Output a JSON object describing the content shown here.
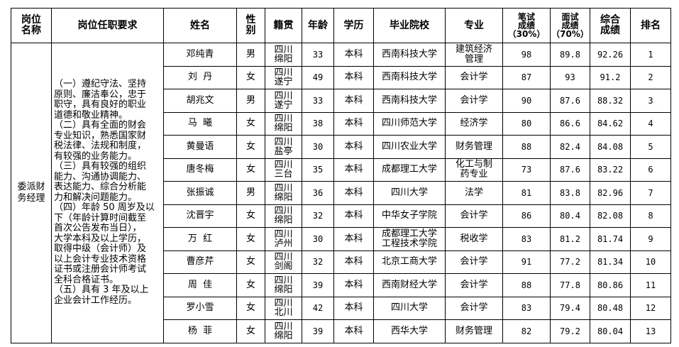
{
  "headers": {
    "position": "岗位\n名称",
    "requirements": "岗位任职要求",
    "name": "姓名",
    "gender": "性\n别",
    "native_place": "籍贯",
    "age": "年龄",
    "education": "学历",
    "school": "毕业院校",
    "major": "专业",
    "written": "笔试\n成绩\n（30%）",
    "interview": "面试\n成绩\n（70%）",
    "total": "综合\n成绩",
    "rank": "排名"
  },
  "position": "委派财\n务经理",
  "requirements": "（一）遵纪守法、坚持\n原则、廉洁奉公，忠于\n职守，具有良好的职业\n道德和敬业精神。\n（二）具有全面的财会\n专业知识，熟悉国家财\n税法律、法规和制度，\n有较强的业务能力。\n（三）具有较强的组织\n能力、沟通协调能力、\n表达能力、综合分析能\n力和解决问题能力。\n（四）年龄 50 周岁及以\n下（年龄计算时间截至\n首次公告发布当日），\n大学本科及以上学历，\n取得中级（会计师）及\n以上会计专业技术资格\n证书或注册会计师考试\n全科合格证书。\n（五）具有 3 年及以上\n企业会计工作经历。",
  "rows": [
    {
      "name": "邓纯青",
      "gender": "男",
      "native": "四川\n绵阳",
      "age": "33",
      "edu": "本科",
      "school": "西南科技大学",
      "major": "建筑经济\n管理",
      "written": "98",
      "interview": "89.8",
      "total": "92.26",
      "rank": "1"
    },
    {
      "name": "刘  丹",
      "gender": "女",
      "native": "四川\n遂宁",
      "age": "49",
      "edu": "本科",
      "school": "西南科技大学",
      "major": "会计学",
      "written": "87",
      "interview": "93",
      "total": "91.2",
      "rank": "2"
    },
    {
      "name": "胡兆文",
      "gender": "男",
      "native": "四川\n遂宁",
      "age": "33",
      "edu": "本科",
      "school": "西南科技大学",
      "major": "会计学",
      "written": "90",
      "interview": "87.6",
      "total": "88.32",
      "rank": "3"
    },
    {
      "name": "马  曦",
      "gender": "女",
      "native": "四川\n绵阳",
      "age": "38",
      "edu": "本科",
      "school": "四川师范大学",
      "major": "经济学",
      "written": "80",
      "interview": "86.6",
      "total": "84.62",
      "rank": "4"
    },
    {
      "name": "黄曼语",
      "gender": "女",
      "native": "四川\n盐亭",
      "age": "30",
      "edu": "本科",
      "school": "四川农业大学",
      "major": "财务管理",
      "written": "88",
      "interview": "82.4",
      "total": "84.08",
      "rank": "5"
    },
    {
      "name": "唐冬梅",
      "gender": "女",
      "native": "四川\n三台",
      "age": "35",
      "edu": "本科",
      "school": "成都理工大学",
      "major": "化工与制\n药专业",
      "written": "73",
      "interview": "87.6",
      "total": "83.22",
      "rank": "6"
    },
    {
      "name": "张振诚",
      "gender": "男",
      "native": "四川\n绵阳",
      "age": "36",
      "edu": "本科",
      "school": "四川大学",
      "major": "法学",
      "written": "81",
      "interview": "83.8",
      "total": "82.96",
      "rank": "7"
    },
    {
      "name": "沈晋宇",
      "gender": "女",
      "native": "四川\n绵阳",
      "age": "32",
      "edu": "本科",
      "school": "中华女子学院",
      "major": "会计学",
      "written": "86",
      "interview": "80.4",
      "total": "82.08",
      "rank": "8"
    },
    {
      "name": "万  红",
      "gender": "女",
      "native": "四川\n泸州",
      "age": "30",
      "edu": "本科",
      "school": "成都理工大学\n工程技术学院",
      "major": "税收学",
      "written": "83",
      "interview": "81.2",
      "total": "81.74",
      "rank": "9"
    },
    {
      "name": "曹彦芹",
      "gender": "女",
      "native": "四川\n剑阁",
      "age": "32",
      "edu": "本科",
      "school": "北京工商大学",
      "major": "会计学",
      "written": "91",
      "interview": "77.2",
      "total": "81.34",
      "rank": "10"
    },
    {
      "name": "周  佳",
      "gender": "女",
      "native": "四川\n绵阳",
      "age": "39",
      "edu": "本科",
      "school": "西南财经大学",
      "major": "会计学",
      "written": "88",
      "interview": "77.8",
      "total": "80.86",
      "rank": "11"
    },
    {
      "name": "罗小雪",
      "gender": "女",
      "native": "四川\n北川",
      "age": "42",
      "edu": "本科",
      "school": "四川大学",
      "major": "会计学",
      "written": "83",
      "interview": "79.4",
      "total": "80.48",
      "rank": "12"
    },
    {
      "name": "杨  菲",
      "gender": "女",
      "native": "四川\n绵阳",
      "age": "39",
      "edu": "本科",
      "school": "西华大学",
      "major": "财务管理",
      "written": "82",
      "interview": "79.2",
      "total": "80.04",
      "rank": "13"
    }
  ]
}
